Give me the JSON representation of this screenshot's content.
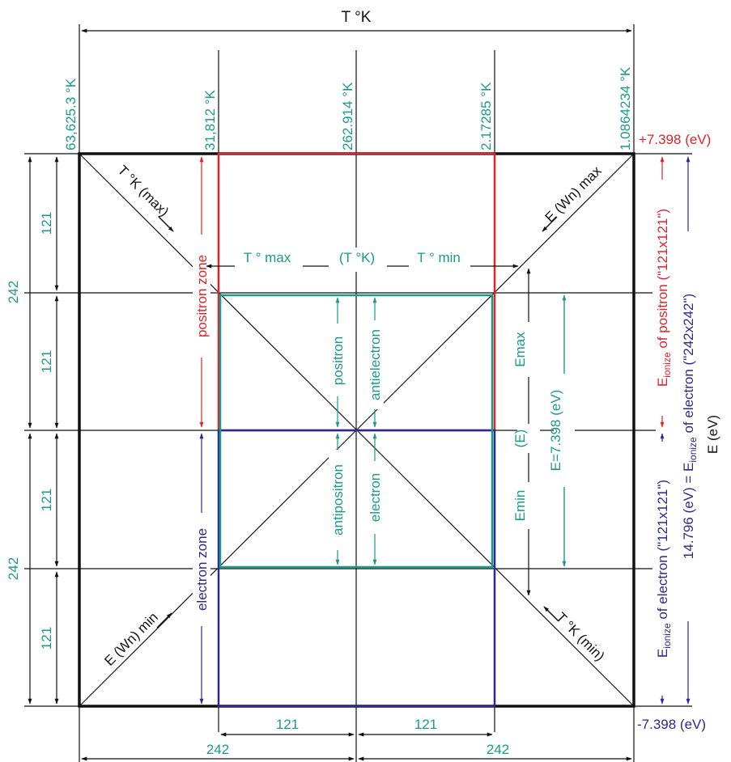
{
  "colors": {
    "black": "#111111",
    "teal": "#1a9a8a",
    "red": "#e0242a",
    "blue": "#2a2a8e"
  },
  "top": {
    "axis_title": "T °K",
    "temps": [
      "63,625.3 °K",
      "31,812 °K",
      "262.914 °K",
      "2.17285 °K",
      "1.0864234 °K"
    ]
  },
  "left": {
    "outer": [
      "242",
      "242"
    ],
    "inner": [
      "121",
      "121",
      "121",
      "121"
    ]
  },
  "bottom": {
    "inner": [
      "121",
      "121"
    ],
    "outer": [
      "242",
      "242"
    ]
  },
  "energy": {
    "top_value": "+7.398 (eV)",
    "bottom_value": "-7.398 (eV)",
    "axis_title": "E (eV)",
    "positron_ionize": {
      "e": "E",
      "sub": "ionize",
      "rest": " of positron (\"121x121\")"
    },
    "electron_ionize": {
      "e": "E",
      "sub": "ionize",
      "rest": " of electron (\"121x121\")"
    },
    "total_prefix": "14.796 (eV) = ",
    "total": {
      "e": "E",
      "sub": "ionize",
      "rest": " of electron (\"242x242\")"
    }
  },
  "diagonals": {
    "t_max": "T °K (max)",
    "e_max": "E (Wn) max",
    "e_min": "E (Wn) min",
    "t_min": "T °K (min)"
  },
  "zones": {
    "positron": "positron zone",
    "electron": "electron zone"
  },
  "temperature_row": {
    "t_max": "T ° max",
    "mid": "(T °K)",
    "t_min": "T ° min"
  },
  "particles": {
    "positron": "positron",
    "antielectron": "antielectron",
    "antipositron": "antipositron",
    "electron": "electron"
  },
  "energy_axis": {
    "emax": "Emax",
    "e": "(E)",
    "emin": "Emin",
    "value": "E=7.398 (eV)"
  }
}
